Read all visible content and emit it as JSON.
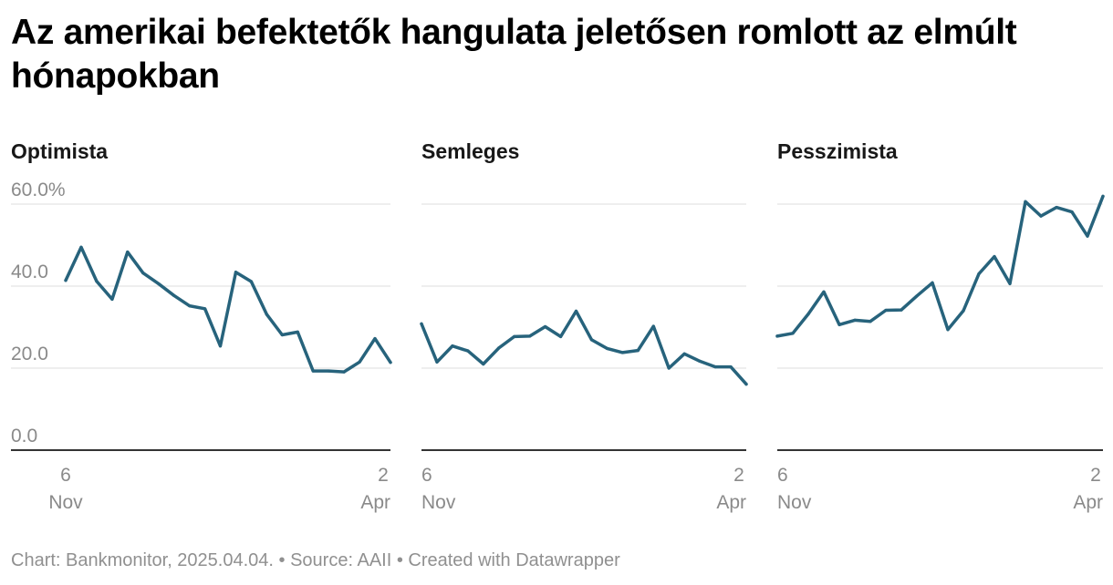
{
  "title": "Az amerikai befektetők hangulata jeletősen romlott az elmúlt hónapokban",
  "footer": {
    "credit": "Chart: Bankmonitor, 2025.04.04.",
    "source": "Source: AAII",
    "tool": "Created with Datawrapper",
    "separator": " • "
  },
  "colors": {
    "line": "#27637c",
    "grid": "#dddddd",
    "axis": "#333333",
    "tick": "#8a8a8a"
  },
  "chart_data": {
    "type": "line",
    "title": "Az amerikai befektetők hangulata jeletősen romlott az elmúlt hónapokban",
    "ylim": [
      0,
      60
    ],
    "yticks": [
      0,
      20,
      40,
      60
    ],
    "ytick_labels": [
      "0.0",
      "20.0",
      "40.0",
      "60.0%"
    ],
    "x_start_label": [
      "6",
      "Nov"
    ],
    "x_end_label": [
      "2",
      "Apr"
    ],
    "grid": true,
    "panels": [
      {
        "name": "Optimista",
        "values": [
          41.4,
          49.5,
          41.2,
          36.8,
          48.3,
          43.2,
          40.6,
          37.7,
          35.2,
          34.5,
          25.4,
          43.4,
          41.1,
          33.1,
          28.1,
          28.8,
          19.3,
          19.3,
          19.1,
          21.5,
          27.2,
          21.4
        ]
      },
      {
        "name": "Semleges",
        "values": [
          30.8,
          21.5,
          25.4,
          24.2,
          21.0,
          24.9,
          27.7,
          27.8,
          30.1,
          27.7,
          33.9,
          26.9,
          24.8,
          23.8,
          24.3,
          30.2,
          20.0,
          23.5,
          21.7,
          20.3,
          20.3,
          16.1
        ]
      },
      {
        "name": "Pesszimista",
        "values": [
          27.8,
          28.5,
          33.2,
          38.6,
          30.6,
          31.7,
          31.4,
          34.1,
          34.2,
          37.6,
          40.8,
          29.4,
          34.0,
          43.0,
          47.2,
          40.6,
          60.6,
          57.1,
          59.2,
          58.1,
          52.2,
          61.9
        ]
      }
    ]
  }
}
